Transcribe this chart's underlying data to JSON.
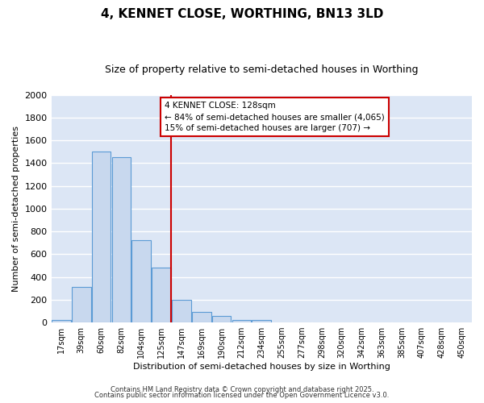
{
  "title": "4, KENNET CLOSE, WORTHING, BN13 3LD",
  "subtitle": "Size of property relative to semi-detached houses in Worthing",
  "xlabel": "Distribution of semi-detached houses by size in Worthing",
  "ylabel": "Number of semi-detached properties",
  "categories": [
    "17sqm",
    "39sqm",
    "60sqm",
    "82sqm",
    "104sqm",
    "125sqm",
    "147sqm",
    "169sqm",
    "190sqm",
    "212sqm",
    "234sqm",
    "255sqm",
    "277sqm",
    "298sqm",
    "320sqm",
    "342sqm",
    "363sqm",
    "385sqm",
    "407sqm",
    "428sqm",
    "450sqm"
  ],
  "values": [
    20,
    310,
    1500,
    1450,
    720,
    480,
    200,
    90,
    55,
    25,
    20,
    0,
    0,
    0,
    0,
    0,
    0,
    0,
    0,
    0,
    0
  ],
  "bar_color": "#c8d8ee",
  "bar_edge_color": "#5b9bd5",
  "vline_x_idx": 5,
  "vline_color": "#cc0000",
  "annotation_title": "4 KENNET CLOSE: 128sqm",
  "annotation_line1": "← 84% of semi-detached houses are smaller (4,065)",
  "annotation_line2": "15% of semi-detached houses are larger (707) →",
  "annotation_box_color": "#ffffff",
  "annotation_box_edge": "#cc0000",
  "ylim": [
    0,
    2000
  ],
  "yticks": [
    0,
    200,
    400,
    600,
    800,
    1000,
    1200,
    1400,
    1600,
    1800,
    2000
  ],
  "footnote1": "Contains HM Land Registry data © Crown copyright and database right 2025.",
  "footnote2": "Contains public sector information licensed under the Open Government Licence v3.0.",
  "plot_bg_color": "#dce6f5",
  "fig_bg_color": "#ffffff",
  "grid_color": "#ffffff",
  "title_fontsize": 11,
  "subtitle_fontsize": 9,
  "tick_fontsize": 7,
  "ylabel_fontsize": 8,
  "xlabel_fontsize": 8,
  "footnote_fontsize": 6
}
